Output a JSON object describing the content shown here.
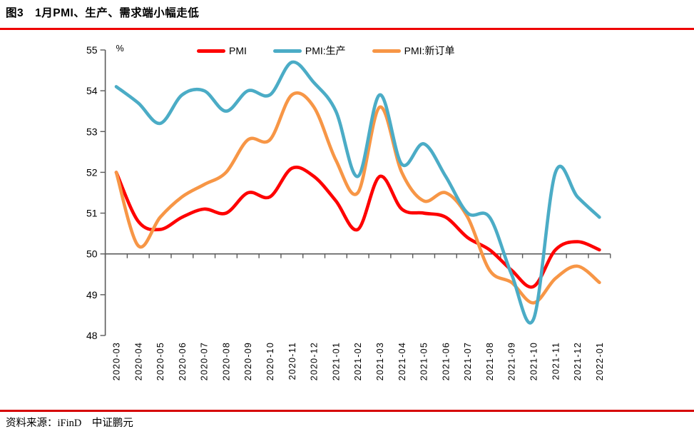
{
  "page": {
    "title": "图3　1月PMI、生产、需求端小幅走低",
    "source_label": "资料来源：iFinD　中证鹏元",
    "top_rule_color": "#ee0000",
    "bottom_rule_color": "#d60000"
  },
  "legend": [
    {
      "label": "PMI",
      "color": "#fe0000"
    },
    {
      "label": "PMI:生产",
      "color": "#4bacc6"
    },
    {
      "label": "PMI:新订单",
      "color": "#f79646"
    }
  ],
  "chart_data": {
    "type": "line",
    "title": "图3　1月PMI、生产、需求端小幅走低",
    "unit_label": "%",
    "xlabel": "",
    "ylabel": "%",
    "ylim": [
      48,
      55
    ],
    "y_ticks": [
      55,
      54,
      53,
      52,
      51,
      50,
      49,
      48
    ],
    "x_axis_cross_value": 50,
    "grid": false,
    "legend_position": "top",
    "line_style": "smooth",
    "axis_color": "#5a5a5a",
    "categories": [
      "2020-03",
      "2020-04",
      "2020-05",
      "2020-06",
      "2020-07",
      "2020-08",
      "2020-09",
      "2020-10",
      "2020-11",
      "2020-12",
      "2021-01",
      "2021-02",
      "2021-03",
      "2021-04",
      "2021-05",
      "2021-06",
      "2021-07",
      "2021-08",
      "2021-09",
      "2021-10",
      "2021-11",
      "2021-12",
      "2022-01"
    ],
    "series": [
      {
        "name": "PMI",
        "color": "#fe0000",
        "values": [
          52.0,
          50.8,
          50.6,
          50.9,
          51.1,
          51.0,
          51.5,
          51.4,
          52.1,
          51.9,
          51.3,
          50.6,
          51.9,
          51.1,
          51.0,
          50.9,
          50.4,
          50.1,
          49.6,
          49.2,
          50.1,
          50.3,
          50.1
        ]
      },
      {
        "name": "PMI:新订单",
        "color": "#f79646",
        "values": [
          52.0,
          50.2,
          50.9,
          51.4,
          51.7,
          52.0,
          52.8,
          52.8,
          53.9,
          53.6,
          52.3,
          51.5,
          53.6,
          52.0,
          51.3,
          51.5,
          50.9,
          49.6,
          49.3,
          48.8,
          49.4,
          49.7,
          49.3
        ]
      },
      {
        "name": "PMI:生产",
        "color": "#4bacc6",
        "values": [
          54.1,
          53.7,
          53.2,
          53.9,
          54.0,
          53.5,
          54.0,
          53.9,
          54.7,
          54.2,
          53.5,
          51.9,
          53.9,
          52.2,
          52.7,
          51.9,
          51.0,
          50.9,
          49.5,
          48.4,
          52.0,
          51.4,
          50.9
        ]
      }
    ]
  }
}
